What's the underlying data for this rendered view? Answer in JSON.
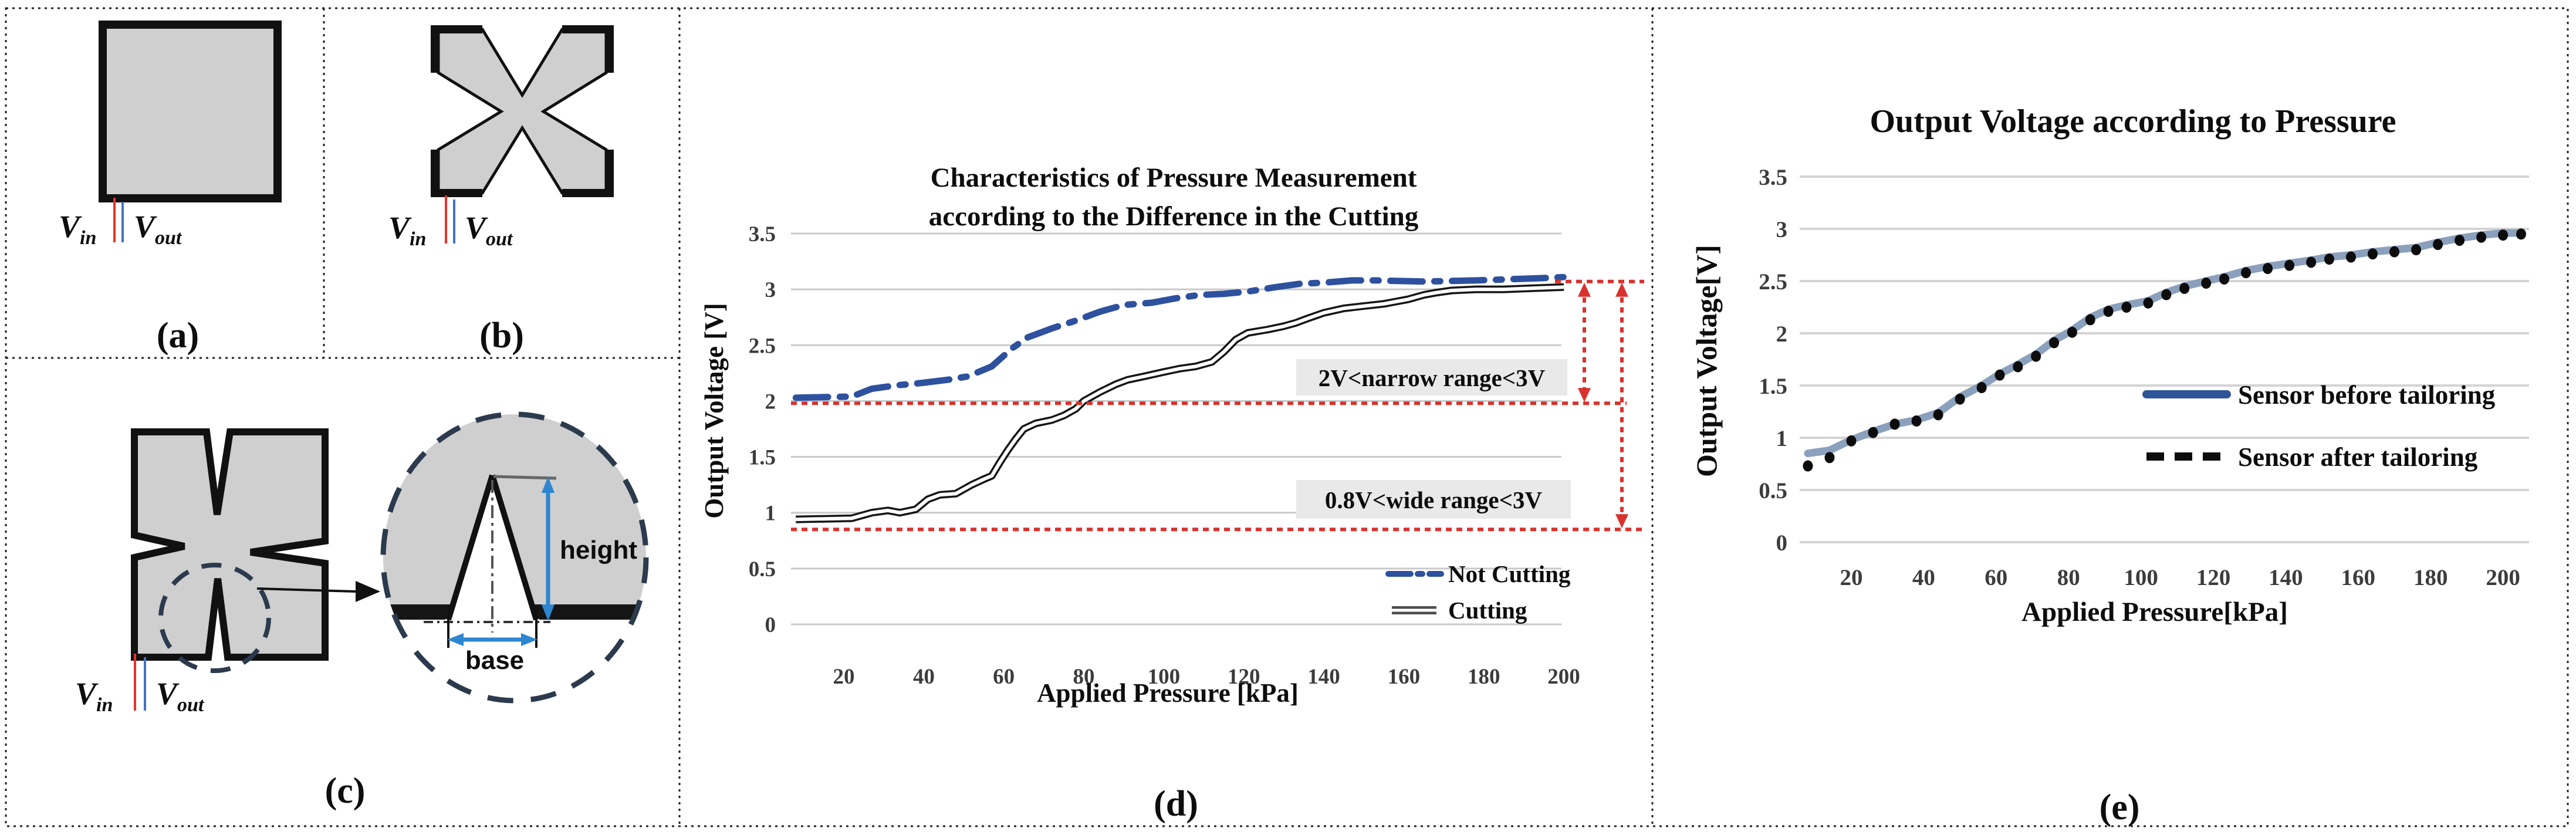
{
  "figure": {
    "panels": {
      "a": {
        "label": "(a)",
        "v_in": {
          "v": "V",
          "sub": "in"
        },
        "v_out": {
          "v": "V",
          "sub": "out"
        }
      },
      "b": {
        "label": "(b)",
        "v_in": {
          "v": "V",
          "sub": "in"
        },
        "v_out": {
          "v": "V",
          "sub": "out"
        }
      },
      "c": {
        "label": "(c)",
        "v_in": {
          "v": "V",
          "sub": "in"
        },
        "v_out": {
          "v": "V",
          "sub": "out"
        },
        "callout": {
          "height_label": "height",
          "base_label": "base"
        }
      },
      "d": {
        "label": "(d)"
      },
      "e": {
        "label": "(e)"
      }
    },
    "colors": {
      "shape_fill": "#cfcfcf",
      "shape_border": "#111111",
      "wire_in_red": "#e8322a",
      "wire_out_blue": "#4472c4",
      "callout_dash": "#2c3a4d",
      "dim_arrow_blue": "#2e86d0"
    }
  },
  "chart_data": [
    {
      "id": "pressure-vs-cutting",
      "type": "line",
      "title_lines": [
        "Characteristics of Pressure Measurement",
        "according to the Difference in the Cutting"
      ],
      "xlabel": "Applied Pressure [kPa]",
      "ylabel": "Output Voltage [V]",
      "xlim": [
        8,
        208
      ],
      "ylim": [
        0,
        3.5
      ],
      "x_ticks": [
        20,
        40,
        60,
        80,
        100,
        120,
        140,
        160,
        180,
        200
      ],
      "y_ticks": [
        0,
        0.5,
        1,
        1.5,
        2,
        2.5,
        3,
        3.5
      ],
      "grid": "horizontal",
      "legend_position": "bottom-right",
      "series": [
        {
          "name": "Not Cutting",
          "style": "blue-dash-dot",
          "color": "#2e519f",
          "points": [
            [
              8,
              2.03
            ],
            [
              22,
              2.04
            ],
            [
              27,
              2.11
            ],
            [
              33,
              2.14
            ],
            [
              39,
              2.16
            ],
            [
              46,
              2.19
            ],
            [
              51,
              2.22
            ],
            [
              57,
              2.31
            ],
            [
              62,
              2.47
            ],
            [
              66,
              2.57
            ],
            [
              72,
              2.65
            ],
            [
              78,
              2.72
            ],
            [
              84,
              2.8
            ],
            [
              90,
              2.86
            ],
            [
              97,
              2.88
            ],
            [
              103,
              2.92
            ],
            [
              109,
              2.95
            ],
            [
              115,
              2.96
            ],
            [
              121,
              2.98
            ],
            [
              128,
              3.02
            ],
            [
              134,
              3.05
            ],
            [
              140,
              3.06
            ],
            [
              147,
              3.08
            ],
            [
              153,
              3.08
            ],
            [
              165,
              3.07
            ],
            [
              178,
              3.08
            ],
            [
              186,
              3.09
            ],
            [
              194,
              3.1
            ],
            [
              200,
              3.11
            ]
          ]
        },
        {
          "name": "Cutting",
          "style": "black-double-line",
          "color": "#161616",
          "points": [
            [
              8,
              0.94
            ],
            [
              15,
              0.945
            ],
            [
              22,
              0.95
            ],
            [
              27,
              1.0
            ],
            [
              31,
              1.02
            ],
            [
              34,
              1.0
            ],
            [
              38,
              1.03
            ],
            [
              41,
              1.12
            ],
            [
              44,
              1.16
            ],
            [
              48,
              1.17
            ],
            [
              52,
              1.25
            ],
            [
              55,
              1.3
            ],
            [
              57,
              1.33
            ],
            [
              59,
              1.45
            ],
            [
              61,
              1.56
            ],
            [
              63,
              1.66
            ],
            [
              65,
              1.75
            ],
            [
              68,
              1.8
            ],
            [
              72,
              1.83
            ],
            [
              75,
              1.87
            ],
            [
              78,
              1.93
            ],
            [
              80,
              2.0
            ],
            [
              84,
              2.08
            ],
            [
              88,
              2.15
            ],
            [
              91,
              2.19
            ],
            [
              95,
              2.22
            ],
            [
              100,
              2.26
            ],
            [
              104,
              2.29
            ],
            [
              108,
              2.31
            ],
            [
              112,
              2.35
            ],
            [
              115,
              2.44
            ],
            [
              118,
              2.55
            ],
            [
              121,
              2.61
            ],
            [
              126,
              2.64
            ],
            [
              130,
              2.67
            ],
            [
              133,
              2.7
            ],
            [
              136,
              2.74
            ],
            [
              140,
              2.79
            ],
            [
              145,
              2.83
            ],
            [
              150,
              2.85
            ],
            [
              155,
              2.87
            ],
            [
              158,
              2.89
            ],
            [
              161,
              2.91
            ],
            [
              165,
              2.95
            ],
            [
              168,
              2.97
            ],
            [
              172,
              2.99
            ],
            [
              178,
              3.0
            ],
            [
              185,
              3.0
            ],
            [
              192,
              3.01
            ],
            [
              200,
              3.02
            ]
          ]
        }
      ],
      "annotations": {
        "narrow_range_label": "2V<narrow range<3V",
        "wide_range_label": "0.8V<wide range<3V",
        "guide_levels": [
          3.07,
          1.98,
          0.85
        ],
        "guide_color": "#d9322e"
      }
    },
    {
      "id": "voltage-vs-pressure-tailoring",
      "type": "line",
      "title": "Output Voltage according to Pressure",
      "xlabel": "Applied Pressure[kPa]",
      "ylabel": "Output Voltage[V]",
      "xlim": [
        6,
        210
      ],
      "ylim": [
        0,
        3.5
      ],
      "x_ticks": [
        20,
        40,
        60,
        80,
        100,
        120,
        140,
        160,
        180,
        200
      ],
      "y_ticks": [
        0,
        0.5,
        1,
        1.5,
        2,
        2.5,
        3,
        3.5
      ],
      "grid": "horizontal",
      "legend_position": "middle-right",
      "series": [
        {
          "name": "Sensor before tailoring",
          "style": "thick-line",
          "color": "#8ba0bc",
          "points": [
            [
              8,
              0.85
            ],
            [
              14,
              0.88
            ],
            [
              20,
              0.98
            ],
            [
              26,
              1.06
            ],
            [
              32,
              1.13
            ],
            [
              38,
              1.17
            ],
            [
              44,
              1.24
            ],
            [
              50,
              1.39
            ],
            [
              56,
              1.5
            ],
            [
              61,
              1.61
            ],
            [
              66,
              1.7
            ],
            [
              71,
              1.8
            ],
            [
              76,
              1.93
            ],
            [
              81,
              2.03
            ],
            [
              86,
              2.15
            ],
            [
              91,
              2.23
            ],
            [
              96,
              2.27
            ],
            [
              102,
              2.31
            ],
            [
              107,
              2.39
            ],
            [
              112,
              2.45
            ],
            [
              118,
              2.5
            ],
            [
              123,
              2.54
            ],
            [
              129,
              2.6
            ],
            [
              135,
              2.64
            ],
            [
              141,
              2.67
            ],
            [
              147,
              2.7
            ],
            [
              152,
              2.73
            ],
            [
              158,
              2.75
            ],
            [
              164,
              2.78
            ],
            [
              170,
              2.8
            ],
            [
              176,
              2.82
            ],
            [
              182,
              2.87
            ],
            [
              188,
              2.91
            ],
            [
              194,
              2.94
            ],
            [
              200,
              2.96
            ],
            [
              205,
              2.96
            ]
          ]
        },
        {
          "name": "Sensor after tailoring",
          "style": "dots",
          "color": "#0c0c0c",
          "points": [
            [
              8,
              0.73
            ],
            [
              14,
              0.81
            ],
            [
              20,
              0.97
            ],
            [
              26,
              1.05
            ],
            [
              32,
              1.13
            ],
            [
              38,
              1.16
            ],
            [
              44,
              1.22
            ],
            [
              50,
              1.37
            ],
            [
              56,
              1.48
            ],
            [
              61,
              1.6
            ],
            [
              66,
              1.68
            ],
            [
              71,
              1.78
            ],
            [
              76,
              1.91
            ],
            [
              81,
              2.01
            ],
            [
              86,
              2.13
            ],
            [
              91,
              2.21
            ],
            [
              96,
              2.25
            ],
            [
              102,
              2.29
            ],
            [
              107,
              2.37
            ],
            [
              112,
              2.43
            ],
            [
              118,
              2.48
            ],
            [
              123,
              2.52
            ],
            [
              129,
              2.58
            ],
            [
              135,
              2.62
            ],
            [
              141,
              2.65
            ],
            [
              147,
              2.68
            ],
            [
              152,
              2.71
            ],
            [
              158,
              2.73
            ],
            [
              164,
              2.76
            ],
            [
              170,
              2.78
            ],
            [
              176,
              2.8
            ],
            [
              182,
              2.85
            ],
            [
              188,
              2.89
            ],
            [
              194,
              2.92
            ],
            [
              200,
              2.94
            ],
            [
              205,
              2.95
            ]
          ]
        }
      ]
    }
  ]
}
